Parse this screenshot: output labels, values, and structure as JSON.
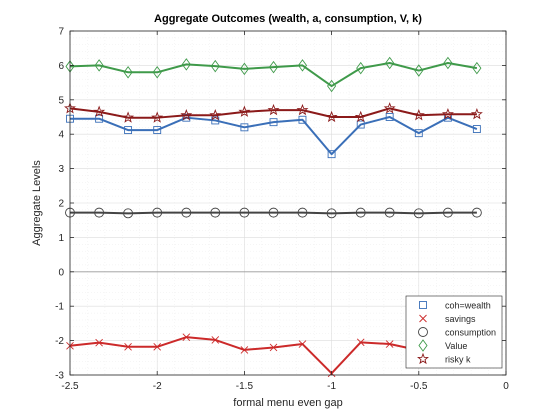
{
  "chart_data": {
    "type": "line",
    "title": "Aggregate Outcomes (wealth, a, consumption, V, k)",
    "xlabel": "formal menu even gap",
    "ylabel": "Aggregate Levels",
    "xlim": [
      -2.5,
      0
    ],
    "ylim": [
      -3,
      7
    ],
    "xticks": [
      -2.5,
      -2,
      -1.5,
      -1,
      -0.5,
      0
    ],
    "xtick_labels": [
      "-2.5",
      "-2",
      "-1.5",
      "-1",
      "-0.5",
      "0"
    ],
    "yticks": [
      -3,
      -2,
      -1,
      0,
      1,
      2,
      3,
      4,
      5,
      6,
      7
    ],
    "ytick_labels": [
      "-3",
      "-2",
      "-1",
      "0",
      "1",
      "2",
      "3",
      "4",
      "5",
      "6",
      "7"
    ],
    "grid": true,
    "zero_line": true,
    "legend_position": "bottom-right",
    "x": [
      -2.5,
      -2.333,
      -2.167,
      -2.0,
      -1.833,
      -1.667,
      -1.5,
      -1.333,
      -1.167,
      -1.0,
      -0.833,
      -0.667,
      -0.5,
      -0.333,
      -0.167
    ],
    "series": [
      {
        "name": "coh=wealth",
        "marker": "square",
        "color": "#3a6fb8",
        "values": [
          4.45,
          4.45,
          4.12,
          4.12,
          4.48,
          4.4,
          4.2,
          4.35,
          4.42,
          3.42,
          4.28,
          4.5,
          4.03,
          4.48,
          4.15
        ]
      },
      {
        "name": "savings",
        "marker": "x",
        "color": "#cc2a2a",
        "values": [
          -2.15,
          -2.06,
          -2.18,
          -2.18,
          -1.9,
          -1.98,
          -2.27,
          -2.2,
          -2.1,
          -2.95,
          -2.05,
          -2.1,
          -2.28,
          -2.05,
          -2.25
        ]
      },
      {
        "name": "consumption",
        "marker": "circle",
        "color": "#444444",
        "values": [
          1.72,
          1.72,
          1.7,
          1.72,
          1.72,
          1.72,
          1.72,
          1.72,
          1.72,
          1.7,
          1.72,
          1.72,
          1.7,
          1.72,
          1.72
        ]
      },
      {
        "name": "Value",
        "marker": "diamond",
        "color": "#3f9a4a",
        "values": [
          5.97,
          6.0,
          5.8,
          5.8,
          6.03,
          5.98,
          5.9,
          5.95,
          6.0,
          5.4,
          5.92,
          6.07,
          5.85,
          6.07,
          5.92
        ]
      },
      {
        "name": "risky k",
        "marker": "star",
        "color": "#8b1a1a",
        "values": [
          4.75,
          4.65,
          4.48,
          4.48,
          4.55,
          4.55,
          4.65,
          4.7,
          4.7,
          4.5,
          4.5,
          4.75,
          4.55,
          4.58,
          4.58
        ]
      }
    ]
  }
}
